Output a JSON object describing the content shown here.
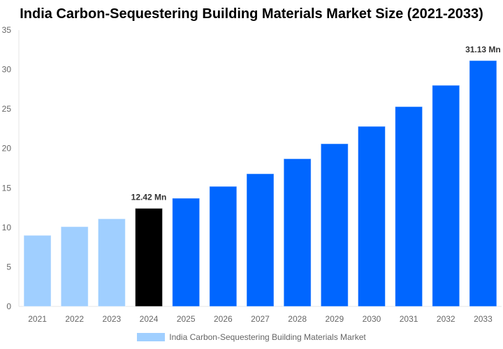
{
  "chart_data": {
    "type": "bar",
    "title": "India Carbon-Sequestering Building Materials Market Size (2021-2033)",
    "categories": [
      "2021",
      "2022",
      "2023",
      "2024",
      "2025",
      "2026",
      "2027",
      "2028",
      "2029",
      "2030",
      "2031",
      "2032",
      "2033"
    ],
    "series": [
      {
        "name": "India Carbon-Sequestering Building Materials Market",
        "values": [
          9.0,
          10.1,
          11.1,
          12.42,
          13.7,
          15.2,
          16.8,
          18.7,
          20.6,
          22.8,
          25.3,
          28.0,
          31.13
        ]
      }
    ],
    "bar_colors": [
      "#a0cfff",
      "#a0cfff",
      "#a0cfff",
      "#000000",
      "#0066ff",
      "#0066ff",
      "#0066ff",
      "#0066ff",
      "#0066ff",
      "#0066ff",
      "#0066ff",
      "#0066ff",
      "#0066ff"
    ],
    "data_labels": [
      {
        "index": 3,
        "text": "12.42 Mn"
      },
      {
        "index": 12,
        "text": "31.13 Mn"
      }
    ],
    "ylim": [
      0,
      35
    ],
    "yticks": [
      0,
      5,
      10,
      15,
      20,
      25,
      30,
      35
    ],
    "grid": false,
    "legend_position": "bottom",
    "xlabel": "",
    "ylabel": ""
  }
}
